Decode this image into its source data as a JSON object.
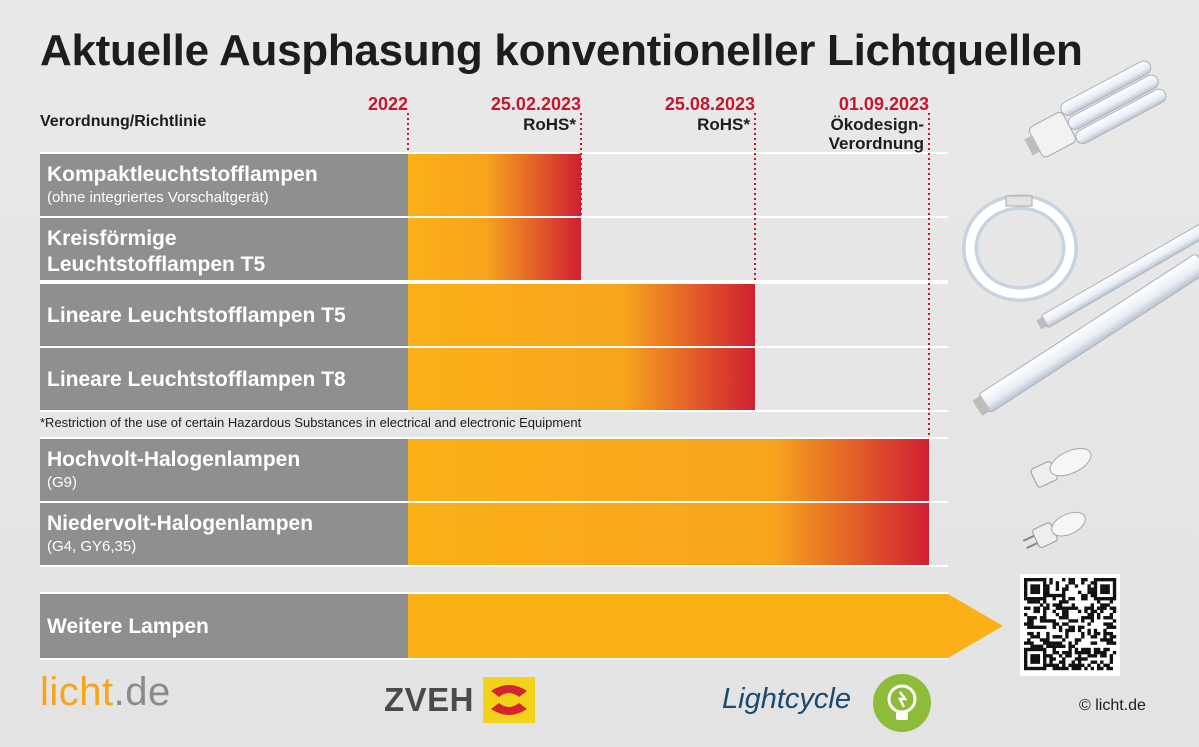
{
  "title": "Aktuelle Ausphasung konventioneller Lichtquellen",
  "column_header": "Verordnung/Richtlinie",
  "footnote": "*Restriction of the use of certain Hazardous Substances in electrical and electronic Equipment",
  "footer": {
    "licht_a": "licht",
    "licht_b": ".de",
    "zveh": "ZVEH",
    "lightcycle": "Lightcycle",
    "copyright": "© licht.de"
  },
  "colors": {
    "accent_red": "#c6172d",
    "bar_start": "#fbb017",
    "bar_end": "#d01f32",
    "label_bg": "#8f8f8f"
  },
  "icons": [
    "compact-fluorescent-lamp-icon",
    "circular-fluorescent-lamp-icon",
    "t5-tube-icon",
    "t8-tube-icon",
    "g9-halogen-icon",
    "g4-halogen-icon",
    "qr-code-icon",
    "zveh-logo-icon",
    "lightcycle-logo-icon"
  ],
  "chart_data": {
    "type": "bar",
    "orientation": "horizontal",
    "title": "Aktuelle Ausphasung konventioneller Lichtquellen",
    "milestones": [
      {
        "date": "2022",
        "notes": []
      },
      {
        "date": "25.02.2023",
        "notes": [
          "RoHS*"
        ]
      },
      {
        "date": "25.08.2023",
        "notes": [
          "RoHS*"
        ]
      },
      {
        "date": "01.09.2023",
        "notes": [
          "Ökodesign-",
          "Verordnung"
        ]
      }
    ],
    "rows": [
      {
        "label": "Kompaktleuchtstofflampen",
        "sub": "(ohne integriertes Vorschaltgerät)",
        "start": "2022",
        "end": "25.02.2023"
      },
      {
        "label": "Kreisförmige",
        "sub": "Leuchtstofflampen T5",
        "sub_bold": true,
        "start": "2022",
        "end": "25.02.2023"
      },
      {
        "label": "Lineare Leuchtstofflampen T5",
        "start": "2022",
        "end": "25.08.2023"
      },
      {
        "label": "Lineare Leuchtstofflampen T8",
        "start": "2022",
        "end": "25.08.2023"
      },
      {
        "label": "Hochvolt-Halogenlampen",
        "sub": "(G9)",
        "start": "2022",
        "end": "01.09.2023"
      },
      {
        "label": "Niedervolt-Halogenlampen",
        "sub": "(G4, GY6,35)",
        "start": "2022",
        "end": "01.09.2023"
      },
      {
        "label": "Weitere Lampen",
        "start": "2022",
        "end": "",
        "open_ended": true
      }
    ]
  }
}
